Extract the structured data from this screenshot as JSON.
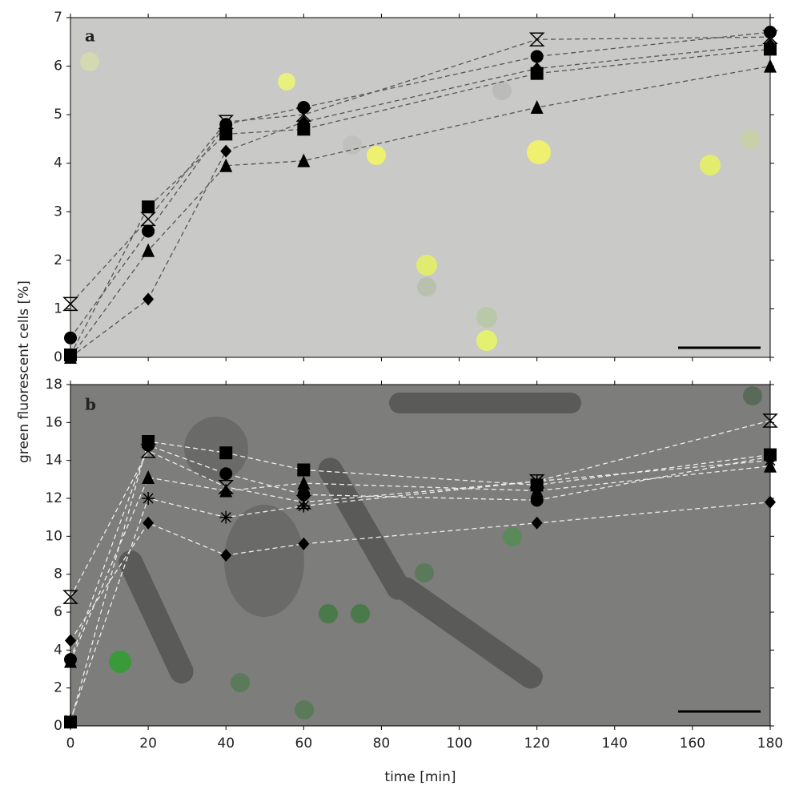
{
  "chart_data": [
    {
      "type": "line",
      "panel_label": "a",
      "ylabel": "green fluorescent cells [%]",
      "x": [
        0,
        20,
        40,
        60,
        120,
        180
      ],
      "xlim": [
        0,
        180
      ],
      "xticks": [
        0,
        20,
        40,
        60,
        80,
        100,
        120,
        140,
        160,
        180
      ],
      "ylim": [
        0,
        7
      ],
      "yticks": [
        0,
        1,
        2,
        3,
        4,
        5,
        6,
        7
      ],
      "background": "#c9c9c7",
      "line_color": "#555555",
      "series": [
        {
          "marker": "square",
          "color": "#000000",
          "values": [
            0.05,
            3.1,
            4.6,
            4.7,
            5.85,
            6.35
          ]
        },
        {
          "marker": "circle",
          "color": "#000000",
          "values": [
            0.4,
            2.6,
            4.8,
            5.15,
            6.2,
            6.7
          ]
        },
        {
          "marker": "triangle",
          "color": "#000000",
          "values": [
            0,
            2.2,
            3.95,
            4.05,
            5.15,
            6.0
          ]
        },
        {
          "marker": "diamond",
          "color": "#000000",
          "values": [
            0,
            1.2,
            4.25,
            4.85,
            5.95,
            6.45
          ]
        },
        {
          "marker": "hourglass",
          "color": "#000000",
          "values": [
            1.1,
            2.85,
            4.85,
            5.0,
            6.55,
            6.6
          ]
        }
      ]
    },
    {
      "type": "line",
      "panel_label": "b",
      "xlabel": "time [min]",
      "x": [
        0,
        20,
        40,
        60,
        120,
        180
      ],
      "xlim": [
        0,
        180
      ],
      "xticks": [
        0,
        20,
        40,
        60,
        80,
        100,
        120,
        140,
        160,
        180
      ],
      "ylim": [
        0,
        18
      ],
      "yticks": [
        0,
        2,
        4,
        6,
        8,
        10,
        12,
        14,
        16,
        18
      ],
      "background": "#7d7d7b",
      "line_color": "#eeeeee",
      "series": [
        {
          "marker": "square",
          "color": "#000000",
          "values": [
            0.2,
            15.0,
            14.4,
            13.5,
            12.7,
            14.3
          ]
        },
        {
          "marker": "circle",
          "color": "#000000",
          "values": [
            3.5,
            14.8,
            13.3,
            12.2,
            11.9,
            14.2
          ]
        },
        {
          "marker": "triangle",
          "color": "#000000",
          "values": [
            3.4,
            13.1,
            12.4,
            12.8,
            12.4,
            13.7
          ]
        },
        {
          "marker": "diamond",
          "color": "#000000",
          "values": [
            4.5,
            10.7,
            9.0,
            9.6,
            10.7,
            11.8
          ]
        },
        {
          "marker": "hourglass",
          "color": "#000000",
          "values": [
            6.8,
            14.5,
            12.6,
            11.8,
            12.9,
            16.1
          ]
        },
        {
          "marker": "asterisk",
          "color": "#000000",
          "values": [
            0.3,
            12.0,
            11.0,
            11.6,
            12.9,
            14.0
          ]
        }
      ]
    }
  ]
}
